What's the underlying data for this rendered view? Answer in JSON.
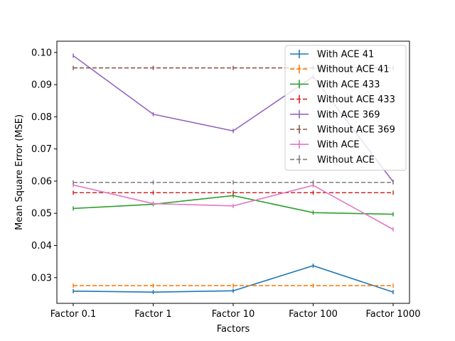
{
  "chart_data": {
    "type": "line",
    "title": "",
    "xlabel": "Factors",
    "ylabel": "Mean Square Error (MSE)",
    "categories": [
      "Factor 0.1",
      "Factor 1",
      "Factor 10",
      "Factor 100",
      "Factor 1000"
    ],
    "ylim": [
      0.022,
      0.1035
    ],
    "yticks": [
      "0.03",
      "0.04",
      "0.05",
      "0.06",
      "0.07",
      "0.08",
      "0.09",
      "0.10"
    ],
    "ytick_values": [
      0.03,
      0.04,
      0.05,
      0.06,
      0.07,
      0.08,
      0.09,
      0.1
    ],
    "grid": false,
    "legend_position": "top-right",
    "series": [
      {
        "name": "With ACE 41",
        "color": "#1f77b4",
        "style": "solid",
        "values": [
          0.0258,
          0.0255,
          0.0259,
          0.0337,
          0.0255
        ]
      },
      {
        "name": "Without ACE 41",
        "color": "#ff7f0e",
        "style": "dashed",
        "values": [
          0.0275,
          0.0275,
          0.0275,
          0.0275,
          0.0275
        ]
      },
      {
        "name": "With ACE 433",
        "color": "#2ca02c",
        "style": "solid",
        "values": [
          0.0515,
          0.0528,
          0.0555,
          0.0502,
          0.0497
        ]
      },
      {
        "name": "Without ACE 433",
        "color": "#d62728",
        "style": "dashed",
        "values": [
          0.0564,
          0.0564,
          0.0564,
          0.0564,
          0.0564
        ]
      },
      {
        "name": "With ACE 369",
        "color": "#9467bd",
        "style": "solid",
        "values": [
          0.099,
          0.0808,
          0.0756,
          0.0925,
          0.0598
        ]
      },
      {
        "name": "Without ACE 369",
        "color": "#8c564b",
        "style": "dashed",
        "values": [
          0.0952,
          0.0952,
          0.0952,
          0.0952,
          0.0952
        ]
      },
      {
        "name": "With ACE",
        "color": "#e377c2",
        "style": "solid",
        "values": [
          0.0588,
          0.053,
          0.0523,
          0.0587,
          0.045
        ]
      },
      {
        "name": "Without ACE",
        "color": "#7f7f7f",
        "style": "dashed",
        "values": [
          0.0596,
          0.0596,
          0.0596,
          0.0596,
          0.0596
        ]
      }
    ]
  }
}
